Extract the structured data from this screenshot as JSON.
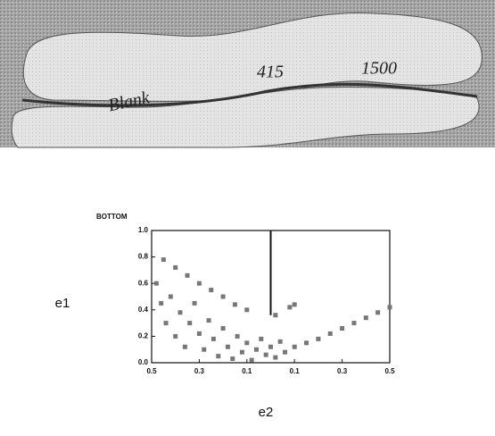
{
  "photo": {
    "labels": [
      "Blank",
      "415",
      "1500"
    ]
  },
  "chart_data": {
    "type": "scatter",
    "title": "BOTTOM",
    "x_label": "e2",
    "y_label": "e1",
    "xlim": [
      -0.5,
      0.5
    ],
    "ylim": [
      0,
      1
    ],
    "xticks": [
      {
        "value": -0.5,
        "label": "0.5"
      },
      {
        "value": -0.3,
        "label": "0.3"
      },
      {
        "value": -0.1,
        "label": "0.1"
      },
      {
        "value": 0.1,
        "label": "0.1"
      },
      {
        "value": 0.3,
        "label": "0.3"
      },
      {
        "value": 0.5,
        "label": "0.5"
      }
    ],
    "yticks": [
      {
        "value": 0,
        "label": "0.0"
      },
      {
        "value": 0.2,
        "label": "0.2"
      },
      {
        "value": 0.4,
        "label": "0.4"
      },
      {
        "value": 0.6,
        "label": "0.6"
      },
      {
        "value": 0.8,
        "label": "0.8"
      },
      {
        "value": 1,
        "label": "1.0"
      }
    ],
    "reference_line": {
      "x": 0,
      "y": [
        0.36,
        1
      ]
    },
    "series": [
      {
        "color": "#777777",
        "x": [
          -0.48,
          -0.46,
          -0.44,
          -0.42,
          -0.4,
          -0.38,
          -0.36,
          -0.34,
          -0.32,
          -0.3,
          -0.28,
          -0.26,
          -0.24,
          -0.22,
          -0.2,
          -0.18,
          -0.16,
          -0.14,
          -0.12,
          -0.1,
          -0.08,
          -0.06,
          -0.04,
          -0.02,
          0.0,
          0.02,
          0.04,
          0.06,
          0.1,
          0.15,
          0.2,
          0.25,
          0.3,
          0.35,
          0.4,
          0.45,
          0.5,
          -0.45,
          -0.4,
          -0.35,
          -0.3,
          -0.25,
          -0.2,
          -0.15,
          -0.1,
          0.02,
          0.08,
          0.1
        ],
        "values": [
          0.6,
          0.45,
          0.3,
          0.5,
          0.2,
          0.38,
          0.12,
          0.3,
          0.45,
          0.22,
          0.1,
          0.32,
          0.18,
          0.05,
          0.26,
          0.12,
          0.03,
          0.2,
          0.08,
          0.15,
          0.02,
          0.1,
          0.18,
          0.06,
          0.12,
          0.04,
          0.16,
          0.08,
          0.12,
          0.15,
          0.18,
          0.22,
          0.26,
          0.3,
          0.34,
          0.38,
          0.42,
          0.78,
          0.72,
          0.66,
          0.6,
          0.55,
          0.5,
          0.44,
          0.4,
          0.36,
          0.42,
          0.44
        ]
      }
    ]
  }
}
